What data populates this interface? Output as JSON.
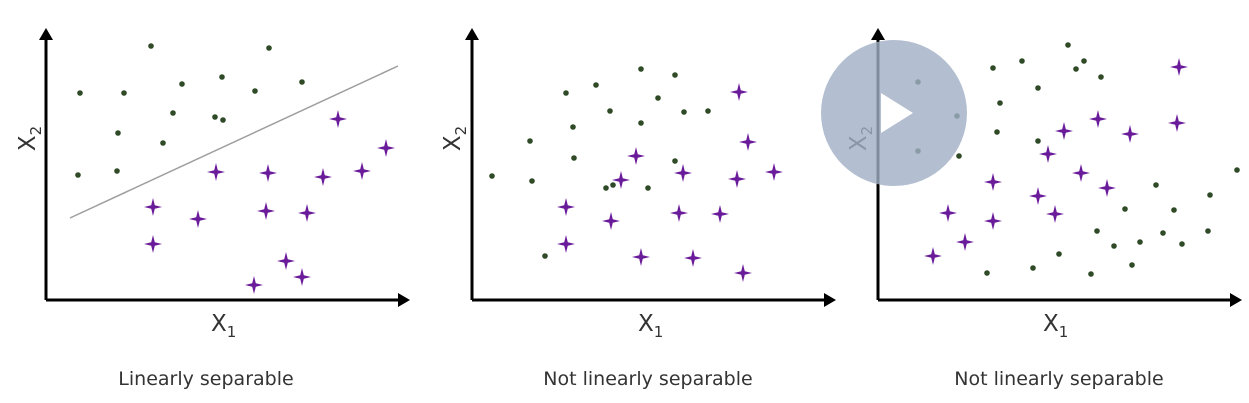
{
  "colors": {
    "axis": "#000000",
    "dot": "#2f4a26",
    "star": "#6a1b9a",
    "separator_line": "#9e9e9e"
  },
  "axis_labels": {
    "x_main": "X",
    "x_sub": "1",
    "y_main": "X",
    "y_sub": "2"
  },
  "panels": [
    {
      "caption": "Linearly separable",
      "has_x_label": true,
      "has_y_label": true,
      "has_separator": true,
      "dots": [
        [
          80,
          93
        ],
        [
          124,
          93
        ],
        [
          151,
          46
        ],
        [
          182,
          84
        ],
        [
          222,
          77
        ],
        [
          269,
          48
        ],
        [
          255,
          91
        ],
        [
          302,
          82
        ],
        [
          118,
          133
        ],
        [
          173,
          113
        ],
        [
          215,
          117
        ],
        [
          223,
          120
        ],
        [
          163,
          143
        ],
        [
          78,
          175
        ],
        [
          117,
          171
        ]
      ],
      "stars": [
        [
          153,
          207
        ],
        [
          153,
          244
        ],
        [
          198,
          219
        ],
        [
          216,
          172
        ],
        [
          268,
          173
        ],
        [
          266,
          211
        ],
        [
          307,
          213
        ],
        [
          323,
          177
        ],
        [
          338,
          119
        ],
        [
          362,
          171
        ],
        [
          386,
          148
        ],
        [
          254,
          285
        ],
        [
          286,
          261
        ],
        [
          302,
          277
        ]
      ]
    },
    {
      "caption": "Not linearly separable",
      "has_x_label": true,
      "has_y_label": true,
      "has_separator": false,
      "dots": [
        [
          492,
          176
        ],
        [
          530,
          141
        ],
        [
          532,
          181
        ],
        [
          566,
          93
        ],
        [
          596,
          85
        ],
        [
          641,
          69
        ],
        [
          675,
          75
        ],
        [
          573,
          127
        ],
        [
          610,
          111
        ],
        [
          658,
          98
        ],
        [
          684,
          112
        ],
        [
          708,
          111
        ],
        [
          641,
          123
        ],
        [
          574,
          158
        ],
        [
          675,
          161
        ],
        [
          606,
          188
        ],
        [
          613,
          185
        ],
        [
          648,
          188
        ],
        [
          545,
          256
        ]
      ],
      "stars": [
        [
          636,
          156
        ],
        [
          621,
          180
        ],
        [
          683,
          173
        ],
        [
          739,
          92
        ],
        [
          748,
          142
        ],
        [
          737,
          179
        ],
        [
          774,
          172
        ],
        [
          566,
          207
        ],
        [
          611,
          221
        ],
        [
          679,
          213
        ],
        [
          720,
          214
        ],
        [
          566,
          244
        ],
        [
          641,
          257
        ],
        [
          693,
          258
        ],
        [
          743,
          273
        ]
      ]
    },
    {
      "caption": "Not linearly separable",
      "has_x_label": true,
      "has_y_label": true,
      "has_separator": false,
      "dots": [
        [
          918,
          82
        ],
        [
          957,
          116
        ],
        [
          918,
          151
        ],
        [
          959,
          156
        ],
        [
          993,
          68
        ],
        [
          1022,
          61
        ],
        [
          1068,
          45
        ],
        [
          1076,
          69
        ],
        [
          1084,
          61
        ],
        [
          1101,
          77
        ],
        [
          1000,
          103
        ],
        [
          1038,
          88
        ],
        [
          997,
          132
        ],
        [
          1038,
          141
        ],
        [
          1210,
          195
        ],
        [
          1237,
          170
        ],
        [
          1156,
          185
        ],
        [
          1174,
          210
        ],
        [
          1125,
          209
        ],
        [
          1097,
          231
        ],
        [
          1114,
          246
        ],
        [
          1140,
          242
        ],
        [
          1163,
          233
        ],
        [
          1182,
          244
        ],
        [
          1208,
          231
        ],
        [
          1059,
          254
        ],
        [
          1033,
          268
        ],
        [
          987,
          273
        ],
        [
          1091,
          274
        ],
        [
          1132,
          265
        ]
      ],
      "stars": [
        [
          1179,
          67
        ],
        [
          1177,
          123
        ],
        [
          1098,
          119
        ],
        [
          1064,
          131
        ],
        [
          1130,
          134
        ],
        [
          1048,
          154
        ],
        [
          1081,
          173
        ],
        [
          1107,
          188
        ],
        [
          1038,
          196
        ],
        [
          1055,
          214
        ],
        [
          993,
          182
        ],
        [
          993,
          221
        ],
        [
          948,
          213
        ],
        [
          965,
          242
        ],
        [
          933,
          256
        ]
      ]
    }
  ],
  "play_button": {
    "label": "Play video"
  }
}
